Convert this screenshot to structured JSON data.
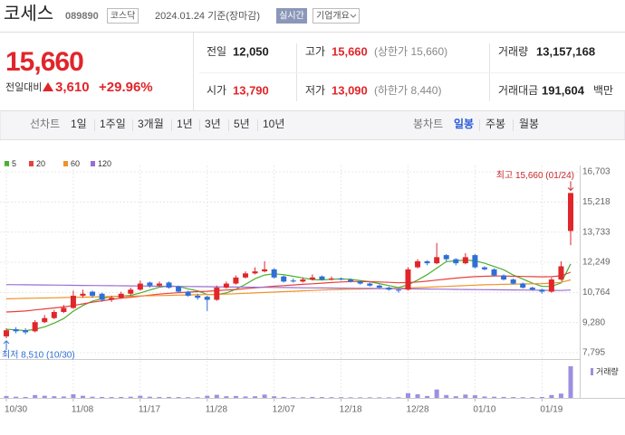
{
  "header": {
    "name": "코세스",
    "code": "089890",
    "market": "코스닥",
    "date": "2024.01.24 기준(장마감)",
    "realtime": "실시간",
    "company_info": "기업개요"
  },
  "quote": {
    "price": "15,660",
    "change_label": "전일대비",
    "change": "3,610",
    "rate": "+29.96%"
  },
  "summary": {
    "rows": [
      [
        {
          "label": "전일",
          "value": "12,050"
        },
        {
          "label": "고가",
          "value": "15,660",
          "note": "(상한가 15,660)"
        },
        {
          "label": "거래량",
          "value": "13,157,168"
        }
      ],
      [
        {
          "label": "시가",
          "value": "13,790"
        },
        {
          "label": "저가",
          "value": "13,090",
          "note": "(하한가 8,440)"
        },
        {
          "label": "거래대금",
          "value": "191,604",
          "unit": "백만"
        }
      ]
    ]
  },
  "toolbar": {
    "line_chart": "선차트",
    "periods": [
      "1일",
      "1주일",
      "3개월",
      "1년",
      "3년",
      "5년",
      "10년"
    ],
    "candle_chart": "봉차트",
    "candle_periods": [
      "일봉",
      "주봉",
      "월봉"
    ],
    "selected_candle_period": 0
  },
  "chart_data": {
    "type": "candlestick",
    "categories": [
      "10/30",
      null,
      null,
      null,
      null,
      null,
      null,
      "11/08",
      null,
      null,
      null,
      null,
      null,
      null,
      "11/17",
      null,
      null,
      null,
      null,
      null,
      null,
      "11/28",
      null,
      null,
      null,
      null,
      null,
      null,
      "12/07",
      null,
      null,
      null,
      null,
      null,
      null,
      "12/18",
      null,
      null,
      null,
      null,
      null,
      null,
      "12/28",
      null,
      null,
      null,
      null,
      null,
      null,
      "01/10",
      null,
      null,
      null,
      null,
      null,
      null,
      "01/19",
      null,
      null,
      null
    ],
    "open": [
      8600,
      8950,
      8900,
      8850,
      9300,
      9500,
      9800,
      10000,
      10600,
      10800,
      10700,
      10400,
      10500,
      10700,
      10900,
      11250,
      11100,
      11250,
      11050,
      10800,
      10600,
      10550,
      10400,
      11000,
      11200,
      11500,
      11700,
      11800,
      11900,
      11550,
      11350,
      11300,
      11400,
      11550,
      11400,
      11450,
      11400,
      11300,
      11200,
      11100,
      11000,
      10900,
      10900,
      12000,
      12300,
      12200,
      12600,
      12400,
      12200,
      12600,
      12000,
      11900,
      11600,
      11400,
      11200,
      11000,
      10900,
      10800,
      11400,
      13790
    ],
    "high": [
      9000,
      9050,
      9000,
      9400,
      9650,
      9900,
      10150,
      10850,
      10900,
      10850,
      10750,
      10600,
      10800,
      11000,
      11350,
      11300,
      11300,
      11300,
      11100,
      10850,
      10700,
      10600,
      11100,
      11300,
      11600,
      11800,
      12000,
      12300,
      11950,
      11600,
      11450,
      11500,
      11650,
      11600,
      11550,
      11500,
      11450,
      11350,
      11250,
      11150,
      11050,
      10950,
      12000,
      12400,
      12350,
      13200,
      12650,
      12450,
      12700,
      12650,
      12050,
      11950,
      11650,
      11450,
      11250,
      11050,
      10950,
      11500,
      12300,
      15660
    ],
    "low": [
      8510,
      8750,
      8700,
      8800,
      9250,
      9450,
      9750,
      9950,
      10500,
      10500,
      10300,
      10300,
      10450,
      10600,
      10850,
      11000,
      11050,
      10950,
      10750,
      10550,
      10400,
      9850,
      10350,
      10950,
      11150,
      11450,
      11650,
      11750,
      11450,
      11250,
      11250,
      11250,
      11350,
      11350,
      11350,
      11350,
      11250,
      11150,
      11050,
      10950,
      10850,
      10750,
      10850,
      11950,
      12100,
      12150,
      12300,
      12100,
      12150,
      11950,
      11850,
      11550,
      11350,
      11150,
      10950,
      10850,
      10700,
      10750,
      11350,
      13090
    ],
    "close": [
      8900,
      8850,
      8800,
      9300,
      9500,
      9800,
      10000,
      10600,
      10700,
      10600,
      10400,
      10500,
      10700,
      10900,
      11200,
      11100,
      11200,
      11000,
      10800,
      10600,
      10500,
      10400,
      11000,
      11200,
      11500,
      11700,
      11800,
      11900,
      11500,
      11300,
      11300,
      11400,
      11500,
      11400,
      11450,
      11400,
      11300,
      11200,
      11100,
      11000,
      10900,
      10850,
      11900,
      12300,
      12200,
      12500,
      12400,
      12200,
      12500,
      12000,
      11900,
      11600,
      11400,
      11200,
      11000,
      10900,
      10800,
      11400,
      12050,
      15660
    ],
    "up_color": "#e0262b",
    "down_color": "#2f6fd6",
    "series": [
      {
        "name": "5",
        "color": "#4caf30",
        "values": [
          8950,
          8920,
          8880,
          8950,
          9070,
          9250,
          9480,
          9840,
          10120,
          10340,
          10460,
          10560,
          10580,
          10620,
          10740,
          10880,
          11020,
          11080,
          11060,
          10940,
          10840,
          10660,
          10660,
          10740,
          10920,
          11160,
          11440,
          11620,
          11680,
          11640,
          11560,
          11480,
          11400,
          11380,
          11410,
          11430,
          11410,
          11350,
          11290,
          11200,
          11100,
          11000,
          11140,
          11370,
          11640,
          11960,
          12280,
          12320,
          12360,
          12320,
          12200,
          12040,
          11880,
          11620,
          11420,
          11220,
          11060,
          11060,
          11230,
          12170
        ]
      },
      {
        "name": "20",
        "color": "#e8413c",
        "values": [
          9800,
          9820,
          9850,
          9900,
          9950,
          10000,
          10050,
          10120,
          10200,
          10280,
          10350,
          10420,
          10480,
          10530,
          10580,
          10630,
          10680,
          10720,
          10750,
          10780,
          10800,
          10820,
          10850,
          10880,
          10910,
          10950,
          10990,
          11030,
          11070,
          11100,
          11130,
          11160,
          11190,
          11220,
          11250,
          11280,
          11300,
          11300,
          11290,
          11280,
          11260,
          11240,
          11250,
          11280,
          11320,
          11370,
          11420,
          11470,
          11510,
          11540,
          11560,
          11570,
          11570,
          11560,
          11550,
          11540,
          11530,
          11540,
          11580,
          11760
        ]
      },
      {
        "name": "60",
        "color": "#f0922b",
        "values": [
          10450,
          10460,
          10470,
          10480,
          10490,
          10500,
          10510,
          10520,
          10530,
          10540,
          10550,
          10560,
          10570,
          10580,
          10590,
          10600,
          10610,
          10620,
          10630,
          10640,
          10650,
          10660,
          10670,
          10680,
          10700,
          10720,
          10740,
          10760,
          10780,
          10800,
          10820,
          10840,
          10860,
          10880,
          10900,
          10910,
          10920,
          10930,
          10940,
          10950,
          10960,
          10970,
          10980,
          11000,
          11020,
          11040,
          11060,
          11080,
          11100,
          11120,
          11140,
          11150,
          11160,
          11170,
          11180,
          11190,
          11200,
          11220,
          11260,
          11380
        ]
      },
      {
        "name": "120",
        "color": "#9b6fd0",
        "values": [
          11150,
          11145,
          11140,
          11135,
          11130,
          11125,
          11120,
          11115,
          11110,
          11105,
          11100,
          11095,
          11090,
          11085,
          11080,
          11075,
          11070,
          11065,
          11060,
          11055,
          11050,
          11045,
          11040,
          11035,
          11030,
          11025,
          11020,
          11015,
          11010,
          11005,
          11000,
          10995,
          10990,
          10985,
          10980,
          10975,
          10970,
          10965,
          10960,
          10955,
          10950,
          10945,
          10940,
          10935,
          10930,
          10925,
          10920,
          10915,
          10910,
          10905,
          10900,
          10895,
          10890,
          10885,
          10880,
          10875,
          10870,
          10865,
          10860,
          10880
        ]
      }
    ],
    "volume": {
      "name": "거래량",
      "color": "#9d8fe0",
      "values": [
        800000,
        500000,
        400000,
        1200000,
        900000,
        700000,
        600000,
        1500000,
        900000,
        500000,
        400000,
        350000,
        400000,
        500000,
        900000,
        500000,
        400000,
        400000,
        350000,
        300000,
        300000,
        900000,
        1300000,
        700000,
        800000,
        600000,
        700000,
        1400000,
        700000,
        400000,
        300000,
        300000,
        400000,
        350000,
        300000,
        300000,
        250000,
        250000,
        250000,
        250000,
        250000,
        300000,
        2000000,
        1500000,
        800000,
        3500000,
        1200000,
        700000,
        1400000,
        1100000,
        600000,
        500000,
        400000,
        350000,
        300000,
        300000,
        400000,
        1200000,
        1800000,
        13157168
      ]
    },
    "ylim": [
      7795,
      16703
    ],
    "yticks": [
      {
        "value": 7795,
        "label": "7,795"
      },
      {
        "value": 9280,
        "label": "9,280"
      },
      {
        "value": 10764,
        "label": "10,764"
      },
      {
        "value": 12249,
        "label": "12,249"
      },
      {
        "value": 13733,
        "label": "13,733"
      },
      {
        "value": 15218,
        "label": "15,218"
      },
      {
        "value": 16703,
        "label": "16,703"
      }
    ],
    "grid": true,
    "annotations": {
      "high": "최고 15,660 (01/24)",
      "low": "최저 8,510 (10/30)"
    }
  }
}
